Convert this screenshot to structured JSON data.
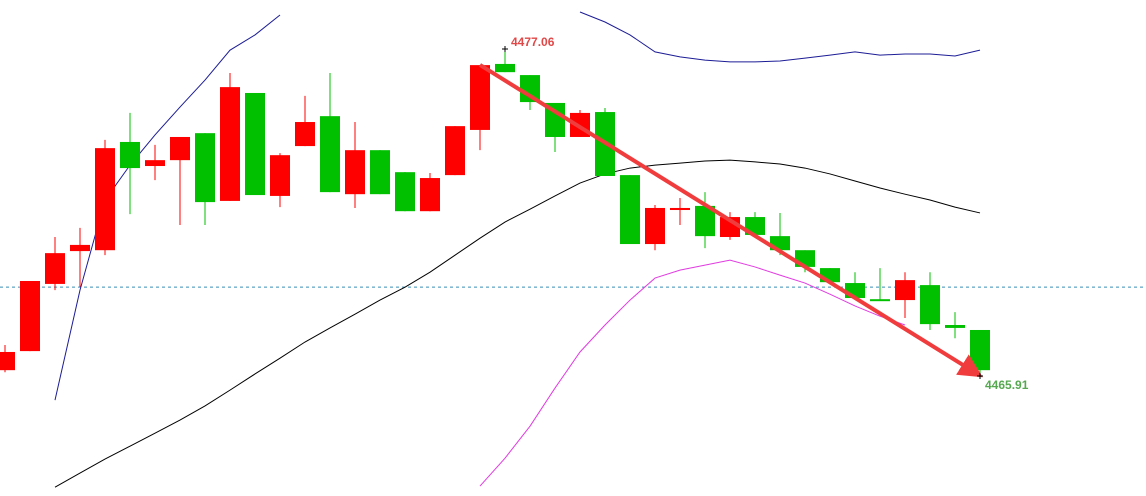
{
  "chart_data": {
    "type": "candlestick",
    "ylim": [
      4461.82,
      4478.73
    ],
    "up_color": "#ff0000",
    "down_color": "#00c000",
    "candles": {
      "open": [
        4466.11,
        4466.76,
        4469.05,
        4470.17,
        4470.2,
        4473.89,
        4473.07,
        4473.27,
        4474.19,
        4471.88,
        4475.56,
        4472.05,
        4473.75,
        4474.77,
        4472.11,
        4473.61,
        4472.86,
        4471.53,
        4472.76,
        4474.3,
        4476.55,
        4476.17,
        4475.22,
        4474.06,
        4474.91,
        4472.76,
        4470.41,
        4471.57,
        4471.71,
        4470.65,
        4471.33,
        4470.68,
        4470.2,
        4469.59,
        4469.08,
        4468.53,
        4468.5,
        4469.01,
        4467.65,
        4467.48
      ],
      "high": [
        4466.97,
        4469.15,
        4470.65,
        4470.96,
        4473.96,
        4474.88,
        4473.79,
        4474.06,
        4474.19,
        4476.24,
        4475.56,
        4473.51,
        4475.46,
        4476.24,
        4474.57,
        4473.61,
        4472.86,
        4472.83,
        4474.43,
        4476.51,
        4477.06,
        4476.17,
        4475.22,
        4474.98,
        4475.05,
        4472.76,
        4471.74,
        4471.98,
        4472.18,
        4471.5,
        4471.5,
        4471.47,
        4470.2,
        4469.59,
        4469.45,
        4469.59,
        4469.45,
        4469.45,
        4468.09,
        4467.48
      ],
      "low": [
        4466.04,
        4466.76,
        4468.84,
        4468.94,
        4470.03,
        4471.43,
        4472.59,
        4471.06,
        4471.06,
        4471.88,
        4472.08,
        4471.67,
        4473.75,
        4472.18,
        4471.64,
        4472.11,
        4471.53,
        4471.53,
        4472.76,
        4473.61,
        4476.27,
        4474.98,
        4473.55,
        4474.06,
        4472.73,
        4470.41,
        4470.2,
        4471.06,
        4470.27,
        4470.55,
        4470.72,
        4470.03,
        4469.45,
        4469.11,
        4468.57,
        4468.47,
        4467.89,
        4467.48,
        4467.2,
        4465.91
      ],
      "close": [
        4466.73,
        4469.15,
        4470.1,
        4470.38,
        4473.68,
        4473.0,
        4473.27,
        4474.06,
        4471.84,
        4475.76,
        4472.08,
        4473.44,
        4474.57,
        4472.18,
        4473.61,
        4472.11,
        4471.53,
        4472.66,
        4474.43,
        4476.51,
        4476.27,
        4475.25,
        4474.06,
        4474.88,
        4472.73,
        4470.41,
        4471.64,
        4471.64,
        4470.68,
        4471.33,
        4470.72,
        4470.2,
        4469.63,
        4469.11,
        4468.57,
        4468.47,
        4469.18,
        4467.68,
        4467.55,
        4466.11
      ]
    },
    "lines": [
      {
        "color": "#1c1c96",
        "values": [
          null,
          null,
          4465.09,
          4468.84,
          4471.91,
          4473.1,
          4474.13,
          4475.08,
          4476.0,
          4477.02,
          4477.54,
          4478.22,
          null,
          null,
          null,
          null,
          null,
          null,
          null,
          null,
          null,
          null,
          null,
          4478.32,
          4477.98,
          4477.54,
          4476.96,
          4476.79,
          4476.68,
          4476.62,
          4476.62,
          4476.65,
          4476.75,
          4476.85,
          4476.96,
          4476.85,
          4476.89,
          4476.89,
          4476.82,
          4477.02
        ]
      },
      {
        "color": "#000000",
        "values": [
          null,
          null,
          4462.12,
          4462.6,
          4463.08,
          4463.52,
          4463.96,
          4464.41,
          4464.89,
          4465.43,
          4465.98,
          4466.52,
          4467.07,
          4467.55,
          4468.02,
          4468.5,
          4468.94,
          4469.45,
          4470.03,
          4470.61,
          4471.16,
          4471.6,
          4472.05,
          4472.49,
          4472.8,
          4473.0,
          4473.1,
          4473.17,
          4473.24,
          4473.27,
          4473.21,
          4473.14,
          4473.0,
          4472.8,
          4472.56,
          4472.32,
          4472.11,
          4471.91,
          4471.67,
          4471.47
        ]
      },
      {
        "color": "#e03ce0",
        "values": [
          null,
          null,
          null,
          null,
          null,
          null,
          null,
          null,
          null,
          null,
          null,
          null,
          null,
          null,
          null,
          null,
          null,
          null,
          null,
          4462.16,
          4463.11,
          4464.2,
          4465.5,
          4466.73,
          4467.65,
          4468.5,
          4469.25,
          4469.52,
          4469.69,
          4469.86,
          4469.63,
          4469.35,
          4469.08,
          4468.7,
          4468.3,
          4467.95,
          4467.65,
          null,
          null,
          null
        ]
      }
    ],
    "reference_line": {
      "value": 4468.94,
      "color": "#3a8fb7"
    },
    "extremes": {
      "high_color": "#e04848",
      "low_color": "#55a84f",
      "arrow_color": "#f03c3c"
    }
  }
}
